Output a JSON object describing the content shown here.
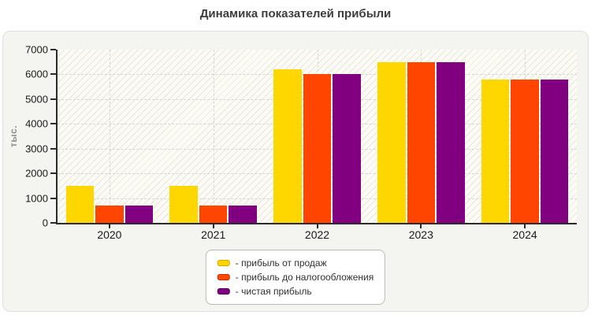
{
  "title": "Динамика показателей прибыли",
  "chart_data": {
    "type": "bar",
    "title": "Динамика показателей прибыли",
    "categories": [
      "2020",
      "2021",
      "2022",
      "2023",
      "2024"
    ],
    "series": [
      {
        "name": "прибыль от продаж",
        "color": "#FFD700",
        "swatch_border": "#D8A400",
        "values": [
          1500,
          1500,
          6200,
          6500,
          5800
        ]
      },
      {
        "name": "прибыль до налогообложения",
        "color": "#FF4500",
        "swatch_border": "#C33000",
        "values": [
          700,
          700,
          6000,
          6500,
          5800
        ]
      },
      {
        "name": "чистая прибыль",
        "color": "#800080",
        "swatch_border": "#560059",
        "values": [
          700,
          700,
          6000,
          6500,
          5800
        ]
      }
    ],
    "xlabel": "",
    "ylabel": "тыс.",
    "ylim": [
      0,
      7000
    ],
    "ytick_step": 1000,
    "yticks": [
      0,
      1000,
      2000,
      3000,
      4000,
      5000,
      6000,
      7000
    ],
    "grid": true,
    "plot_background": "diagonal-hatch",
    "legend_position": "bottom-center"
  },
  "legend": {
    "prefix": "- "
  }
}
